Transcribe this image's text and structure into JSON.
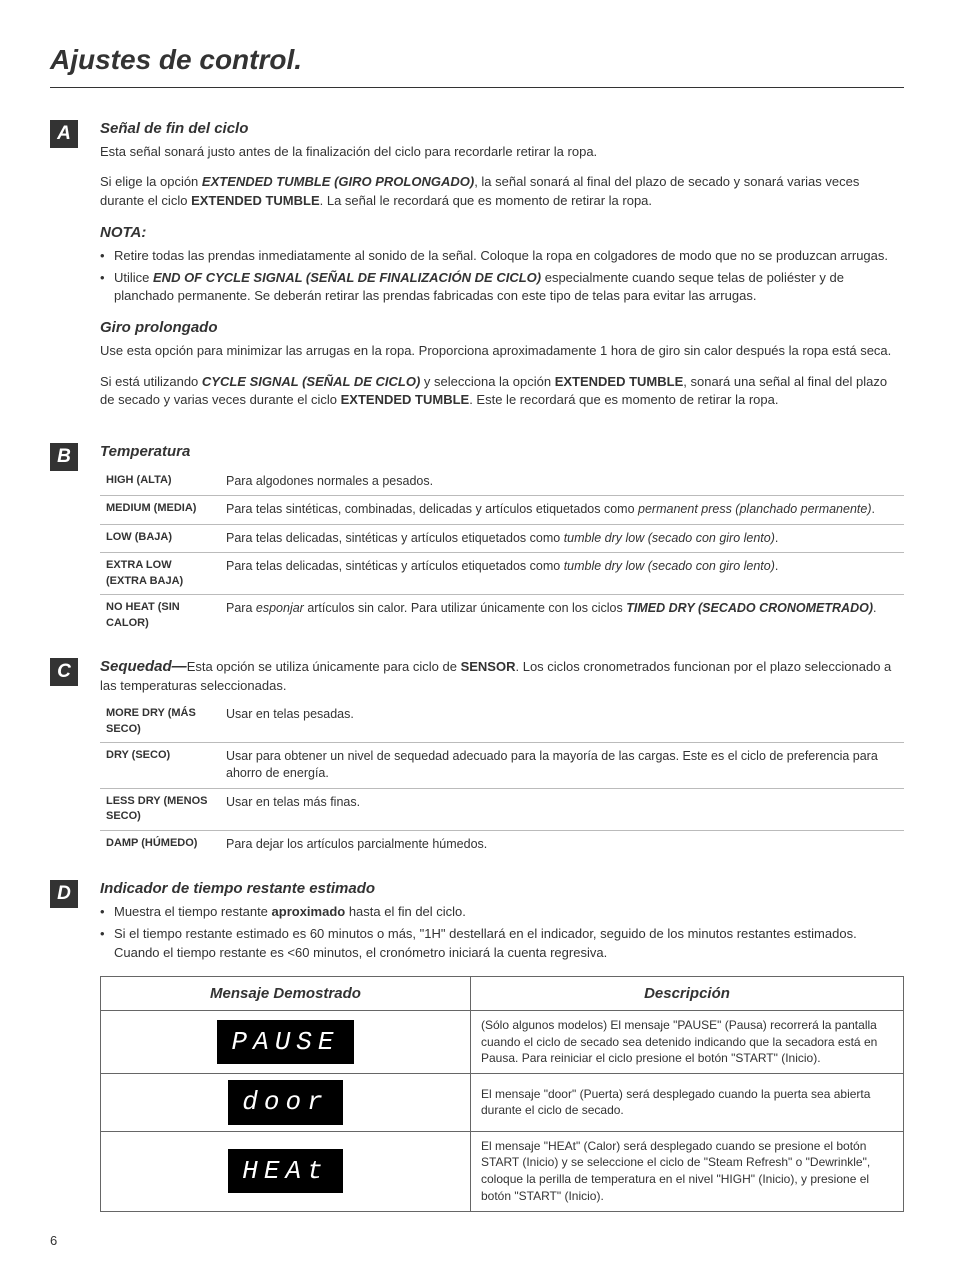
{
  "page_title": "Ajustes de control.",
  "page_number": "6",
  "section_A": {
    "letter": "A",
    "h1": "Señal de fin del ciclo",
    "p1_a": "Esta señal sonará justo antes de la finalización del ciclo para recordarle retirar la ropa.",
    "p2_a": "Si elige la opción ",
    "p2_b": "EXTENDED TUMBLE (GIRO PROLONGADO)",
    "p2_c": ", la señal sonará al final del plazo de secado y sonará varias veces durante el ciclo ",
    "p2_d": "EXTENDED TUMBLE",
    "p2_e": ". La señal le recordará que es momento de retirar la ropa.",
    "nota": "NOTA:",
    "b1": "Retire todas las prendas inmediatamente al sonido de la señal. Coloque la ropa en colgadores de modo que no se produzcan arrugas.",
    "b2_a": "Utilice ",
    "b2_b": "END OF CYCLE SIGNAL (SEÑAL DE FINALIZACIÓN DE CICLO)",
    "b2_c": " especialmente cuando seque telas de poliéster y de planchado permanente. Se deberán retirar las prendas fabricadas con este tipo de telas para evitar las arrugas.",
    "h2": "Giro prolongado",
    "p3": "Use esta opción para minimizar las arrugas en la ropa. Proporciona aproximadamente 1 hora de giro sin calor después la ropa está seca.",
    "p4_a": "Si está utilizando ",
    "p4_b": "CYCLE SIGNAL (SEÑAL DE CICLO)",
    "p4_c": " y selecciona la opción ",
    "p4_d": "EXTENDED TUMBLE",
    "p4_e": ", sonará una señal al final del plazo de secado y varias veces durante el ciclo ",
    "p4_f": "EXTENDED TUMBLE",
    "p4_g": ". Este le recordará que es momento de retirar la ropa."
  },
  "section_B": {
    "letter": "B",
    "h": "Temperatura",
    "rows": [
      {
        "l": "HIGH (ALTA)",
        "d_a": "Para algodones normales a pesados."
      },
      {
        "l": "MEDIUM (MEDIA)",
        "d_a": "Para telas sintéticas, combinadas, delicadas y artículos etiquetados como ",
        "d_i": "permanent press (planchado permanente)",
        "d_b": "."
      },
      {
        "l": "LOW (BAJA)",
        "d_a": "Para telas delicadas, sintéticas y artículos etiquetados como ",
        "d_i": "tumble dry low (secado con giro lento)",
        "d_b": "."
      },
      {
        "l": "EXTRA LOW (EXTRA BAJA)",
        "d_a": "Para telas delicadas, sintéticas y artículos etiquetados como ",
        "d_i": "tumble dry low (secado con giro lento)",
        "d_b": "."
      },
      {
        "l": "NO HEAT (SIN CALOR)",
        "d_a": "Para ",
        "d_i": "esponjar",
        "d_b": " artículos sin calor. Para utilizar únicamente con los ciclos ",
        "d_bi": "TIMED DRY (SECADO CRONOMETRADO)",
        "d_c": "."
      }
    ]
  },
  "section_C": {
    "letter": "C",
    "h_a": "Sequedad—",
    "h_b": "Esta opción se utiliza únicamente para ciclo de ",
    "h_c": "SENSOR",
    "h_d": ". Los ciclos cronometrados funcionan por el plazo seleccionado a las temperaturas seleccionadas.",
    "rows": [
      {
        "l": "MORE DRY (MÁS SECO)",
        "d": "Usar en telas pesadas."
      },
      {
        "l": "DRY (SECO)",
        "d": "Usar para obtener un nivel de sequedad adecuado para la mayoría de las cargas. Este es el ciclo de preferencia para ahorro de energía."
      },
      {
        "l": "LESS DRY (MENOS SECO)",
        "d": "Usar en telas más finas."
      },
      {
        "l": "DAMP (HÚMEDO)",
        "d": "Para dejar los artículos parcialmente húmedos."
      }
    ]
  },
  "section_D": {
    "letter": "D",
    "h": "Indicador de tiempo restante estimado",
    "b1_a": "Muestra el tiempo restante ",
    "b1_b": "aproximado",
    "b1_c": " hasta el fin del ciclo.",
    "b2": "Si el tiempo restante estimado es 60 minutos o más, \"1H\" destellará en el indicador, seguido de los minutos restantes estimados. Cuando el tiempo restante es <60 minutos, el cronómetro iniciará la cuenta regresiva.",
    "th1": "Mensaje Demostrado",
    "th2": "Descripción",
    "rows": [
      {
        "msg": "PAUSE",
        "desc": "(Sólo algunos modelos) El mensaje \"PAUSE\" (Pausa) recorrerá la pantalla cuando el ciclo de secado sea detenido indicando que la secadora está en Pausa. Para reiniciar el ciclo presione el botón \"START\" (Inicio)."
      },
      {
        "msg": "door",
        "desc": "El mensaje \"door\" (Puerta) será desplegado cuando la puerta sea abierta durante el ciclo de secado."
      },
      {
        "msg": "HEAt",
        "desc": "El mensaje \"HEAt\" (Calor) será desplegado cuando se presione el botón START (Inicio) y se seleccione el ciclo de \"Steam Refresh\" o \"Dewrinkle\", coloque la perilla de temperatura en el nivel \"HIGH\" (Inicio), y presione el botón \"START\" (Inicio)."
      }
    ]
  }
}
